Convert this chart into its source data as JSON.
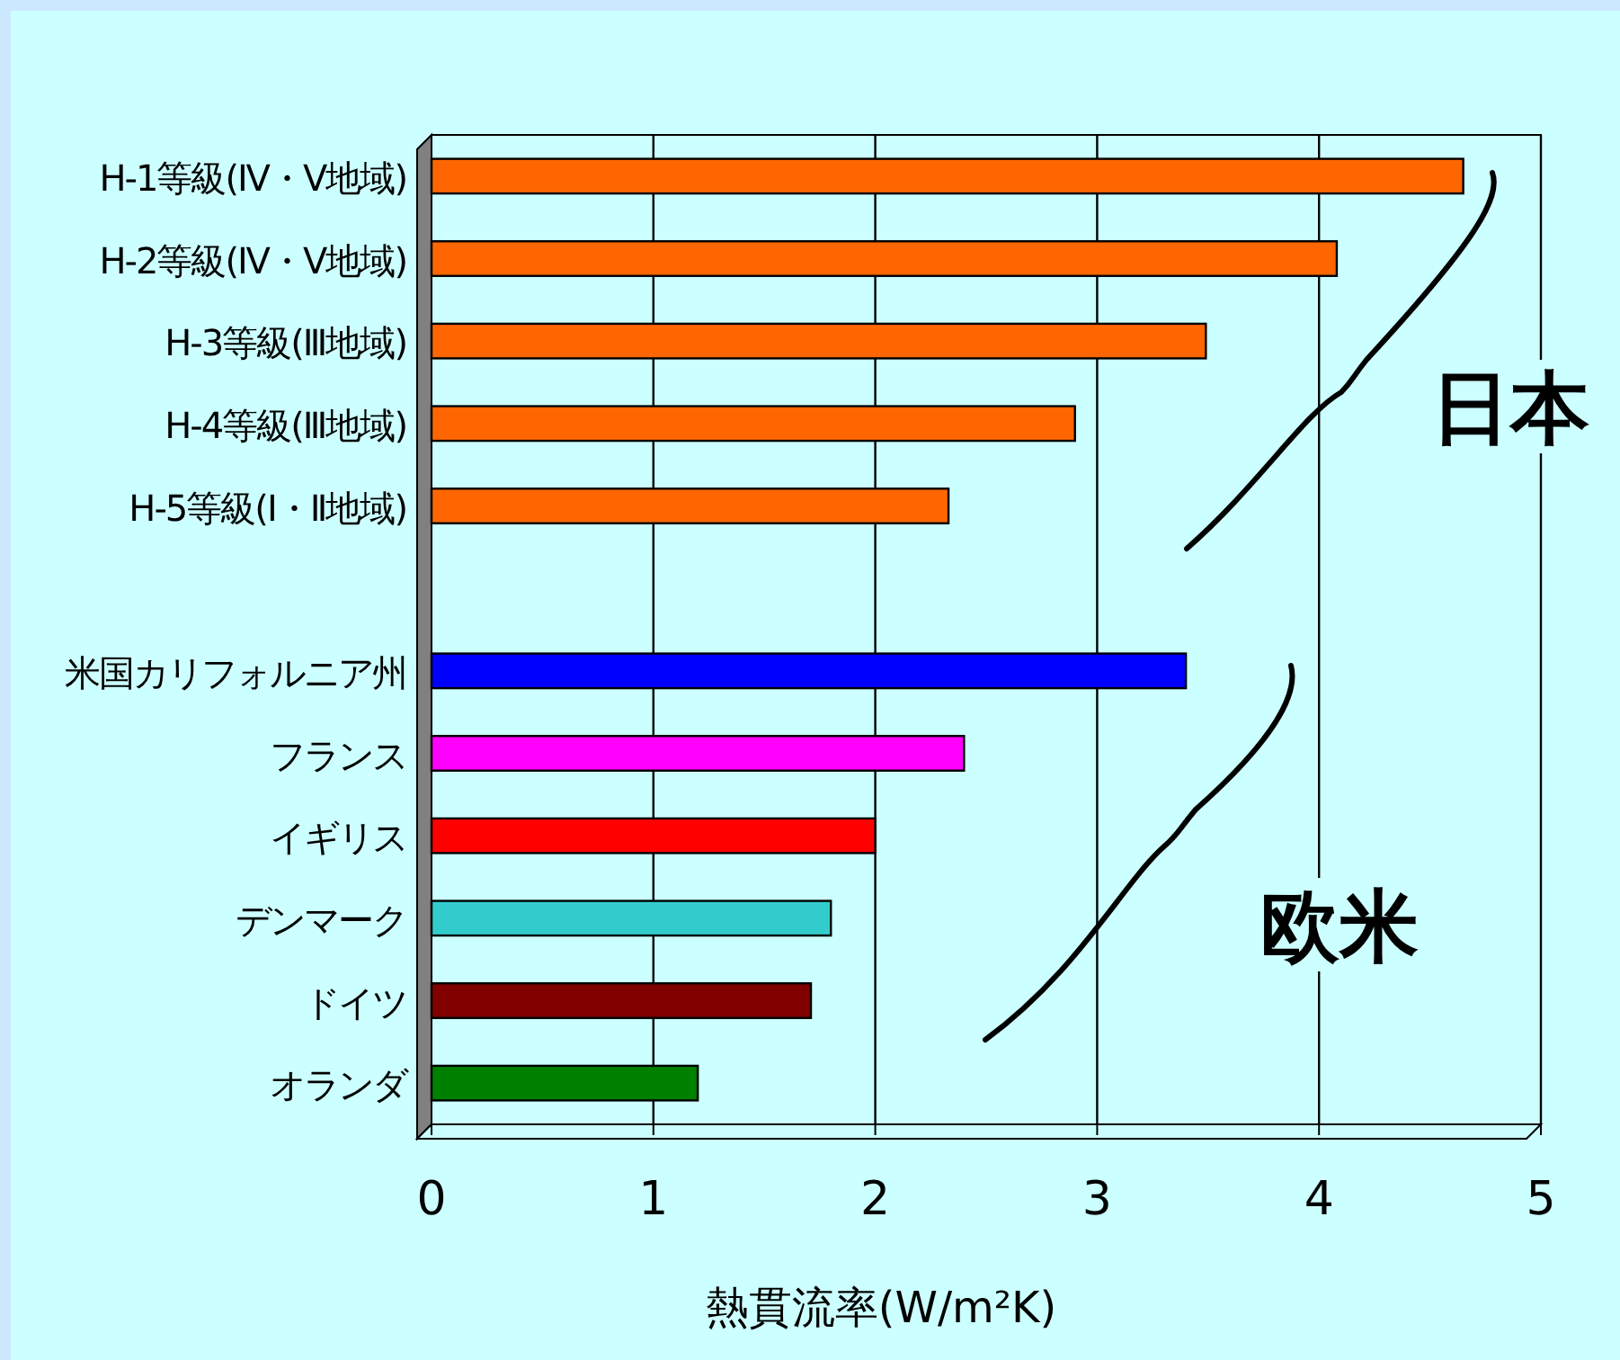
{
  "chart_data": {
    "type": "bar",
    "orientation": "horizontal",
    "categories": [
      "H-1等級(Ⅳ・Ⅴ地域)",
      "H-2等級(Ⅳ・Ⅴ地域)",
      "H-3等級(Ⅲ地域)",
      "H-4等級(Ⅲ地域)",
      "H-5等級(Ⅰ・Ⅱ地域)",
      null,
      "米国カリフォルニア州",
      "フランス",
      "イギリス",
      "デンマーク",
      "ドイツ",
      "オランダ"
    ],
    "values": [
      4.65,
      4.08,
      3.49,
      2.9,
      2.33,
      null,
      3.4,
      2.4,
      2.0,
      1.8,
      1.71,
      1.2
    ],
    "colors": [
      "#ff6600",
      "#ff6600",
      "#ff6600",
      "#ff6600",
      "#ff6600",
      null,
      "#0000ff",
      "#ff00ff",
      "#ff0000",
      "#33cccc",
      "#800000",
      "#008000"
    ],
    "xlabel": "熱貫流率(W/m²K)",
    "xlim": [
      0,
      5
    ],
    "xticks": [
      0,
      1,
      2,
      3,
      4,
      5
    ],
    "grid": "x",
    "legend": false,
    "annotations": [
      "日本",
      "欧米"
    ]
  }
}
